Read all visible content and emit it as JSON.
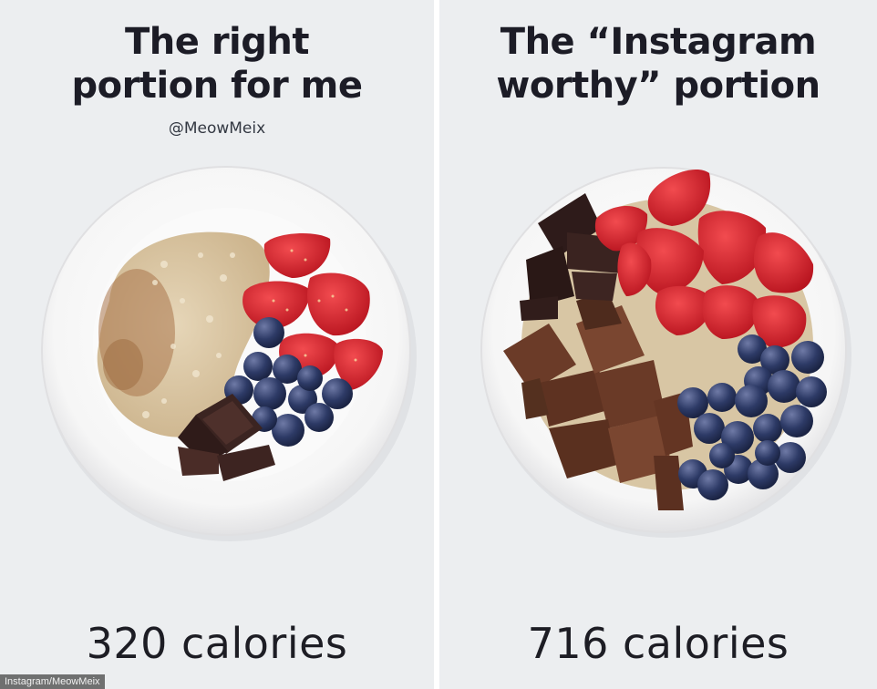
{
  "left_panel": {
    "title_lines": [
      "The right",
      "portion for me"
    ],
    "handle": "@MeowMeix",
    "calories": "320 calories"
  },
  "right_panel": {
    "title_lines": [
      "The “Instagram",
      "worthy” portion"
    ],
    "calories": "716 calories"
  },
  "credit": "Instagram/MeowMeix",
  "colors": {
    "background": "#eceef0",
    "text": "#1c1c26",
    "bowl": "#ffffff",
    "oats": "#d8c6a4",
    "strawberry": "#d8232e",
    "blueberry": "#2f3b63",
    "chocolate": "#3a2320",
    "brownie": "#6b3b28"
  }
}
